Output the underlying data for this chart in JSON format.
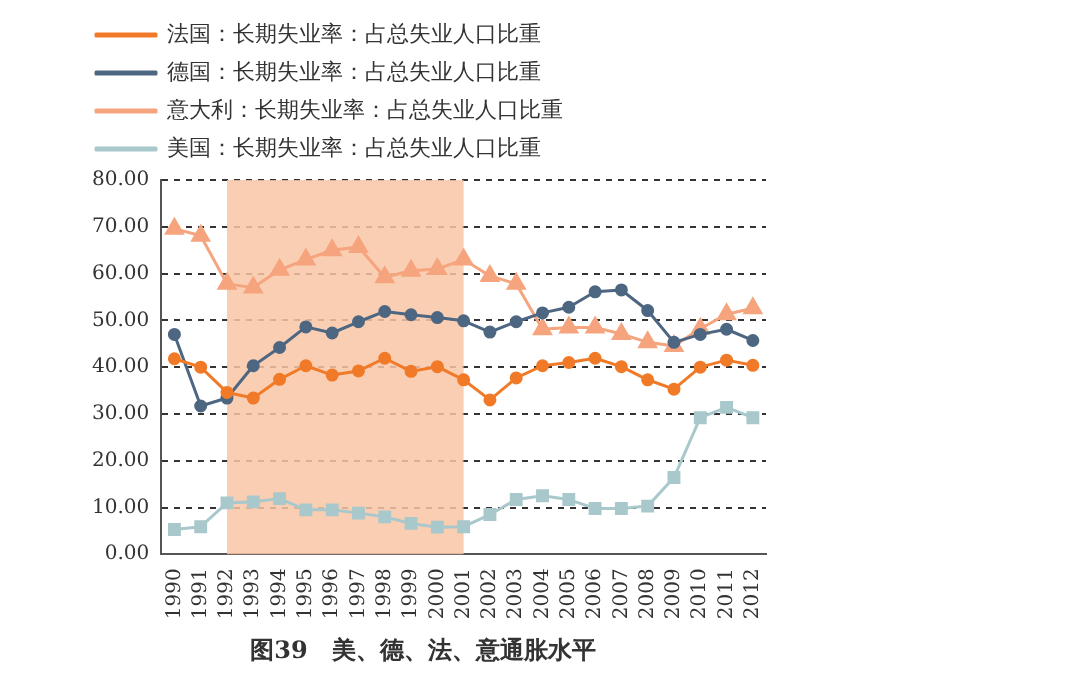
{
  "chart_data": {
    "type": "line",
    "title": "图39　美、德、法、意通胀水平",
    "categories": [
      "1990",
      "1991",
      "1992",
      "1993",
      "1994",
      "1995",
      "1996",
      "1997",
      "1998",
      "1999",
      "2000",
      "2001",
      "2002",
      "2003",
      "2004",
      "2005",
      "2006",
      "2007",
      "2008",
      "2009",
      "2010",
      "2011",
      "2012"
    ],
    "series": [
      {
        "name": "法国：长期失业率：占总失业人口比重",
        "color": "#f07a28",
        "marker": "circle",
        "values": [
          41.8,
          40,
          34.6,
          33.4,
          37.4,
          40.3,
          38.3,
          39.2,
          41.9,
          39.1,
          40.1,
          37.3,
          33,
          37.7,
          40.3,
          41,
          41.9,
          40.1,
          37.3,
          35.3,
          40,
          41.5,
          40.4
        ]
      },
      {
        "name": "德国：长期失业率：占总失业人口比重",
        "color": "#4d6681",
        "marker": "circle",
        "values": [
          47,
          31.7,
          33.4,
          40.3,
          44.2,
          48.6,
          47.3,
          49.7,
          51.9,
          51.2,
          50.6,
          49.9,
          47.5,
          49.7,
          51.6,
          52.8,
          56.1,
          56.5,
          52.1,
          45.3,
          47,
          48.1,
          45.7
        ]
      },
      {
        "name": "意大利：长期失业率：占总失业人口比重",
        "color": "#f5a47e",
        "marker": "triangle",
        "values": [
          69.6,
          68.1,
          57.8,
          57,
          60.8,
          63,
          65,
          65.7,
          59.2,
          60.6,
          61,
          63,
          59.5,
          57.8,
          48.1,
          48.5,
          48.5,
          47.1,
          45.3,
          44.5,
          48.2,
          51.3,
          52.6
        ]
      },
      {
        "name": "美国：长期失业率：占总失业人口比重",
        "color": "#a9c8cc",
        "marker": "square",
        "values": [
          5.3,
          5.9,
          11,
          11.2,
          11.9,
          9.5,
          9.5,
          8.8,
          8,
          6.6,
          5.8,
          5.9,
          8.5,
          11.7,
          12.5,
          11.7,
          9.8,
          9.8,
          10.3,
          16.4,
          29.2,
          31.4,
          29.2
        ]
      }
    ],
    "ylim": [
      0,
      80
    ],
    "yticks": [
      {
        "value": 0,
        "label": "0.00"
      },
      {
        "value": 10,
        "label": "10.00"
      },
      {
        "value": 20,
        "label": "20.00"
      },
      {
        "value": 30,
        "label": "30.00"
      },
      {
        "value": 40,
        "label": "40.00"
      },
      {
        "value": 50,
        "label": "50.00"
      },
      {
        "value": 60,
        "label": "60.00"
      },
      {
        "value": 70,
        "label": "70.00"
      },
      {
        "value": 80,
        "label": "80.00"
      }
    ],
    "bands": [
      {
        "axis": "x",
        "from": "1992",
        "to": "2001",
        "color": "#f9c6a4"
      }
    ],
    "grid": "y",
    "legend": "top",
    "line_style": "solid"
  }
}
